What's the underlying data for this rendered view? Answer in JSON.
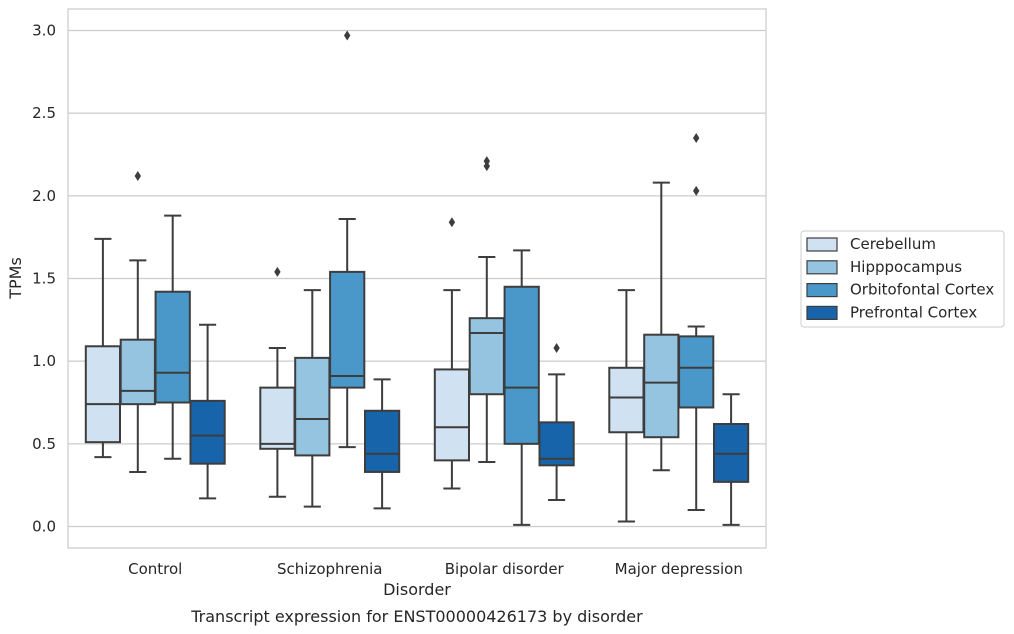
{
  "chart_data": {
    "type": "box",
    "xlabel": "Disorder",
    "ylabel": "TPMs",
    "caption": "Transcript expression for ENST00000426173 by disorder",
    "ylim": [
      -0.13,
      3.13
    ],
    "yticks": [
      "0.0",
      "0.5",
      "1.0",
      "1.5",
      "2.0",
      "2.5",
      "3.0"
    ],
    "ytick_values": [
      0,
      0.5,
      1.0,
      1.5,
      2.0,
      2.5,
      3.0
    ],
    "grid": "horizontal",
    "legend_position": "right",
    "categories": [
      "Control",
      "Schizophrenia",
      "Bipolar disorder",
      "Major depression"
    ],
    "series": [
      {
        "name": "Cerebellum",
        "color": "#d0e1f2",
        "boxes": [
          {
            "whislo": 0.42,
            "q1": 0.51,
            "med": 0.74,
            "q3": 1.09,
            "whishi": 1.74,
            "fliers": []
          },
          {
            "whislo": 0.18,
            "q1": 0.47,
            "med": 0.5,
            "q3": 0.84,
            "whishi": 1.08,
            "fliers": [
              1.54
            ]
          },
          {
            "whislo": 0.23,
            "q1": 0.4,
            "med": 0.6,
            "q3": 0.95,
            "whishi": 1.43,
            "fliers": [
              1.84
            ]
          },
          {
            "whislo": 0.03,
            "q1": 0.57,
            "med": 0.78,
            "q3": 0.96,
            "whishi": 1.43,
            "fliers": []
          }
        ]
      },
      {
        "name": "Hipppocampus",
        "color": "#94c4df",
        "boxes": [
          {
            "whislo": 0.33,
            "q1": 0.74,
            "med": 0.82,
            "q3": 1.13,
            "whishi": 1.61,
            "fliers": [
              2.12
            ]
          },
          {
            "whislo": 0.12,
            "q1": 0.43,
            "med": 0.65,
            "q3": 1.02,
            "whishi": 1.43,
            "fliers": []
          },
          {
            "whislo": 0.39,
            "q1": 0.8,
            "med": 1.17,
            "q3": 1.26,
            "whishi": 1.63,
            "fliers": [
              2.18,
              2.21
            ]
          },
          {
            "whislo": 0.34,
            "q1": 0.54,
            "med": 0.87,
            "q3": 1.16,
            "whishi": 2.08,
            "fliers": []
          }
        ]
      },
      {
        "name": "Orbitofontal Cortex",
        "color": "#4a98c9",
        "boxes": [
          {
            "whislo": 0.41,
            "q1": 0.75,
            "med": 0.93,
            "q3": 1.42,
            "whishi": 1.88,
            "fliers": []
          },
          {
            "whislo": 0.48,
            "q1": 0.84,
            "med": 0.91,
            "q3": 1.54,
            "whishi": 1.86,
            "fliers": [
              2.97
            ]
          },
          {
            "whislo": 0.01,
            "q1": 0.5,
            "med": 0.84,
            "q3": 1.45,
            "whishi": 1.67,
            "fliers": []
          },
          {
            "whislo": 0.1,
            "q1": 0.72,
            "med": 0.96,
            "q3": 1.15,
            "whishi": 1.21,
            "fliers": [
              2.03,
              2.35
            ]
          }
        ]
      },
      {
        "name": "Prefrontal Cortex",
        "color": "#1764ab",
        "boxes": [
          {
            "whislo": 0.17,
            "q1": 0.38,
            "med": 0.55,
            "q3": 0.76,
            "whishi": 1.22,
            "fliers": []
          },
          {
            "whislo": 0.11,
            "q1": 0.33,
            "med": 0.44,
            "q3": 0.7,
            "whishi": 0.89,
            "fliers": []
          },
          {
            "whislo": 0.16,
            "q1": 0.37,
            "med": 0.41,
            "q3": 0.63,
            "whishi": 0.92,
            "fliers": [
              1.08
            ]
          },
          {
            "whislo": 0.01,
            "q1": 0.27,
            "med": 0.44,
            "q3": 0.62,
            "whishi": 0.8,
            "fliers": []
          }
        ]
      }
    ]
  }
}
